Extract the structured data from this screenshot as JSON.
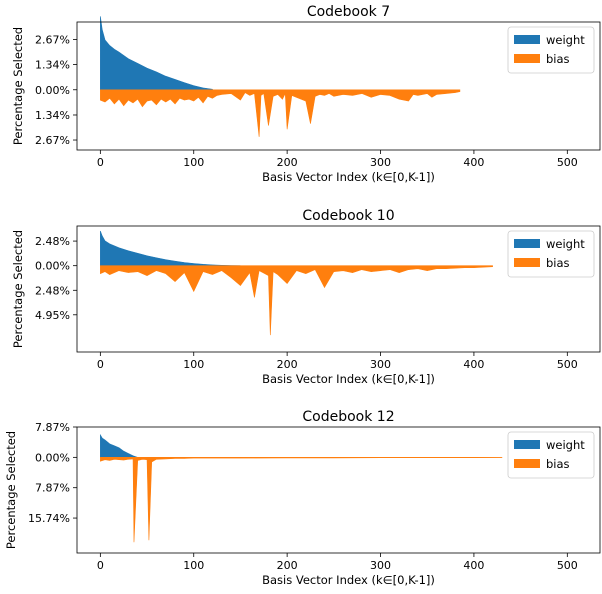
{
  "colors": {
    "weight": "#1f77b4",
    "bias": "#ff7f0e"
  },
  "chart_data": [
    {
      "type": "area",
      "title": "Codebook 7",
      "xlabel": "Basis Vector Index (k∈[0,K-1])",
      "ylabel": "Percentage Selected",
      "xlim": [
        -25,
        535
      ],
      "ylim": [
        -3.2,
        3.6
      ],
      "xticks": [
        0,
        100,
        200,
        300,
        400,
        500
      ],
      "xtick_labels": [
        "0",
        "100",
        "200",
        "300",
        "400",
        "500"
      ],
      "yticks": [
        2.67,
        1.34,
        0.0,
        -1.34,
        -2.67
      ],
      "ytick_labels": [
        "2.67%",
        "1.34%",
        "0.00%",
        "1.34%",
        "2.67%"
      ],
      "legend": {
        "position": "top-right",
        "entries": [
          "weight",
          "bias"
        ]
      },
      "series": [
        {
          "name": "weight",
          "direction": "up",
          "x": [
            0,
            2,
            5,
            10,
            15,
            20,
            30,
            40,
            50,
            60,
            70,
            80,
            90,
            100,
            110,
            120
          ],
          "values": [
            3.9,
            3.2,
            2.65,
            2.35,
            2.15,
            2.0,
            1.65,
            1.4,
            1.15,
            0.95,
            0.72,
            0.55,
            0.38,
            0.22,
            0.1,
            0.03
          ]
        },
        {
          "name": "bias",
          "direction": "down",
          "x": [
            0,
            5,
            10,
            15,
            20,
            25,
            30,
            35,
            40,
            45,
            50,
            55,
            60,
            65,
            70,
            75,
            80,
            85,
            90,
            95,
            100,
            105,
            110,
            115,
            120,
            125,
            130,
            140,
            150,
            155,
            160,
            165,
            170,
            172,
            175,
            180,
            185,
            190,
            195,
            198,
            200,
            205,
            210,
            220,
            225,
            230,
            235,
            240,
            245,
            250,
            260,
            270,
            280,
            290,
            300,
            310,
            320,
            330,
            335,
            340,
            350,
            355,
            360,
            370,
            380,
            385
          ],
          "values": [
            0.55,
            0.65,
            0.45,
            0.75,
            0.5,
            0.85,
            0.55,
            0.7,
            0.5,
            0.9,
            0.6,
            0.55,
            0.8,
            0.5,
            0.65,
            0.5,
            0.75,
            0.45,
            0.55,
            0.5,
            0.6,
            0.4,
            0.7,
            0.35,
            0.45,
            0.3,
            0.25,
            0.2,
            0.55,
            0.15,
            0.3,
            0.2,
            2.5,
            0.3,
            0.2,
            1.9,
            0.35,
            0.25,
            0.5,
            0.2,
            2.1,
            0.3,
            0.4,
            0.6,
            1.8,
            0.35,
            0.25,
            0.3,
            0.2,
            0.35,
            0.25,
            0.3,
            0.2,
            0.4,
            0.25,
            0.3,
            0.5,
            0.6,
            0.25,
            0.3,
            0.2,
            0.4,
            0.25,
            0.2,
            0.15,
            0.1
          ]
        }
      ]
    },
    {
      "type": "area",
      "title": "Codebook 10",
      "xlabel": "Basis Vector Index (k∈[0,K-1])",
      "ylabel": "Percentage Selected",
      "xlim": [
        -25,
        535
      ],
      "ylim": [
        -8.7,
        4.0
      ],
      "xticks": [
        0,
        100,
        200,
        300,
        400,
        500
      ],
      "xtick_labels": [
        "0",
        "100",
        "200",
        "300",
        "400",
        "500"
      ],
      "yticks": [
        2.48,
        0.0,
        -2.48,
        -4.95
      ],
      "ytick_labels": [
        "2.48%",
        "0.00%",
        "2.48%",
        "4.95%"
      ],
      "legend": {
        "position": "top-right",
        "entries": [
          "weight",
          "bias"
        ]
      },
      "series": [
        {
          "name": "weight",
          "direction": "up",
          "x": [
            0,
            2,
            5,
            10,
            20,
            30,
            40,
            50,
            60,
            70,
            80,
            90,
            100,
            110,
            120,
            130,
            140,
            150
          ],
          "values": [
            3.5,
            3.0,
            2.5,
            2.2,
            1.8,
            1.5,
            1.25,
            1.0,
            0.8,
            0.6,
            0.45,
            0.32,
            0.22,
            0.14,
            0.08,
            0.04,
            0.02,
            0.0
          ]
        },
        {
          "name": "bias",
          "direction": "down",
          "x": [
            0,
            5,
            10,
            20,
            30,
            40,
            50,
            60,
            70,
            80,
            90,
            100,
            110,
            120,
            130,
            140,
            150,
            160,
            165,
            170,
            180,
            182,
            185,
            190,
            200,
            210,
            220,
            230,
            240,
            250,
            260,
            270,
            280,
            290,
            300,
            310,
            320,
            330,
            340,
            350,
            360,
            370,
            380,
            390,
            400,
            410,
            420
          ],
          "values": [
            0.8,
            0.6,
            0.9,
            0.5,
            0.7,
            0.6,
            1.0,
            0.5,
            0.8,
            1.6,
            0.7,
            2.6,
            0.6,
            0.9,
            0.5,
            1.2,
            2.0,
            0.7,
            3.2,
            0.5,
            1.0,
            7.0,
            0.6,
            0.9,
            1.8,
            0.5,
            0.8,
            0.4,
            2.2,
            0.6,
            0.5,
            0.7,
            0.4,
            0.6,
            0.5,
            0.4,
            0.7,
            0.4,
            0.3,
            0.5,
            0.3,
            0.3,
            0.25,
            0.2,
            0.2,
            0.15,
            0.1
          ]
        }
      ]
    },
    {
      "type": "area",
      "title": "Codebook 12",
      "xlabel": "Basis Vector Index (k∈[0,K-1])",
      "ylabel": "Percentage Selected",
      "xlim": [
        -25,
        535
      ],
      "ylim": [
        -24.8,
        7.87
      ],
      "xticks": [
        0,
        100,
        200,
        300,
        400,
        500
      ],
      "xtick_labels": [
        "0",
        "100",
        "200",
        "300",
        "400",
        "500"
      ],
      "yticks": [
        7.87,
        0.0,
        -7.87,
        -15.74
      ],
      "ytick_labels": [
        "7.87%",
        "0.00%",
        "7.87%",
        "15.74%"
      ],
      "legend": {
        "position": "top-right",
        "entries": [
          "weight",
          "bias"
        ]
      },
      "series": [
        {
          "name": "weight",
          "direction": "up",
          "x": [
            0,
            2,
            5,
            10,
            15,
            20,
            25,
            30,
            35,
            40
          ],
          "values": [
            5.8,
            5.0,
            4.5,
            3.5,
            3.0,
            2.5,
            1.6,
            1.0,
            0.4,
            0.0
          ]
        },
        {
          "name": "bias",
          "direction": "down",
          "x": [
            0,
            5,
            10,
            15,
            20,
            25,
            30,
            35,
            36,
            40,
            45,
            50,
            52,
            55,
            60,
            70,
            80,
            90,
            100,
            120,
            150,
            200,
            250,
            300,
            350,
            400,
            430
          ],
          "values": [
            1.0,
            0.6,
            0.8,
            0.5,
            0.6,
            0.7,
            0.5,
            0.4,
            22.0,
            0.8,
            0.5,
            0.6,
            21.5,
            1.2,
            0.5,
            0.4,
            0.3,
            0.3,
            0.2,
            0.2,
            0.2,
            0.15,
            0.15,
            0.1,
            0.1,
            0.1,
            0.05
          ]
        }
      ]
    }
  ]
}
